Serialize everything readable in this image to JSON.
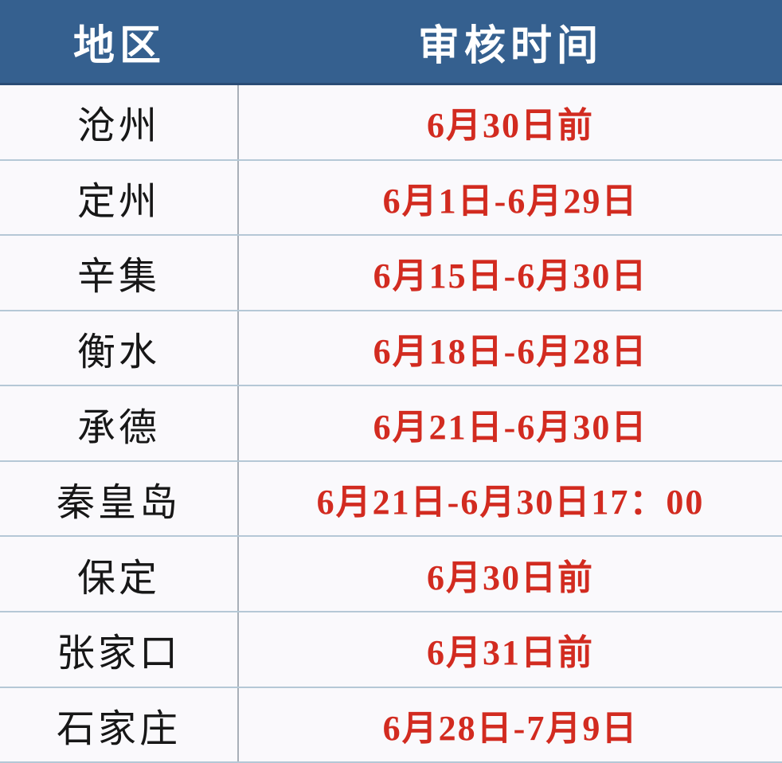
{
  "table": {
    "columns": {
      "region_label": "地区",
      "time_label": "审核时间"
    },
    "rows": [
      {
        "region": "沧州",
        "time": "6月30日前"
      },
      {
        "region": "定州",
        "time": "6月1日-6月29日"
      },
      {
        "region": "辛集",
        "time": "6月15日-6月30日"
      },
      {
        "region": "衡水",
        "time": "6月18日-6月28日"
      },
      {
        "region": "承德",
        "time": "6月21日-6月30日"
      },
      {
        "region": "秦皇岛",
        "time": "6月21日-6月30日17：00"
      },
      {
        "region": "保定",
        "time": "6月30日前"
      },
      {
        "region": "张家口",
        "time": "6月31日前"
      },
      {
        "region": "石家庄",
        "time": "6月28日-7月9日"
      }
    ]
  },
  "colors": {
    "header_bg": "#35608F",
    "header_text": "#FFFFFF",
    "row_bg": "#FAF9FC",
    "region_text": "#171717",
    "time_text": "#D22B20",
    "horizontal_divider": "#B5C8D6",
    "vertical_divider": "#A8AFB8"
  }
}
